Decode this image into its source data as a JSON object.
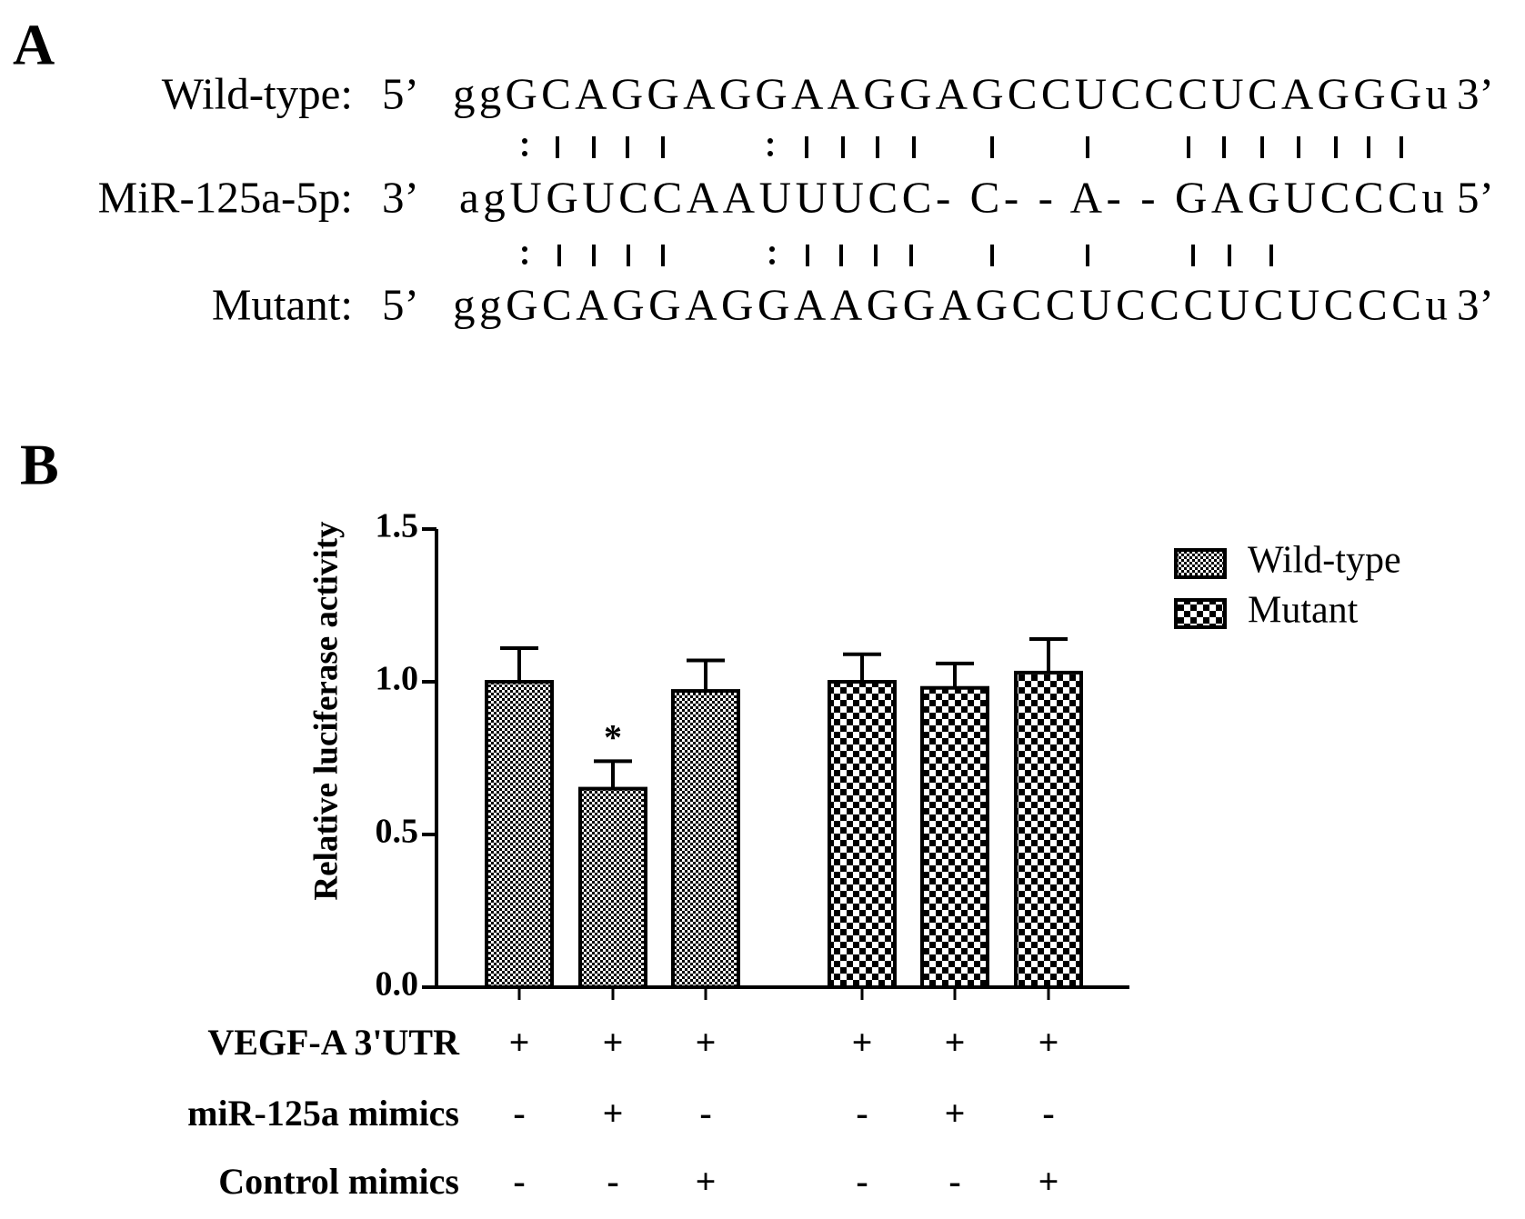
{
  "panel_a": {
    "label": "A",
    "rows": [
      {
        "name": "Wild-type:",
        "left_end": "5’",
        "sequence": "ggGCAGGAGGAAGGAGCCUCCCUCAGGGu",
        "right_end": "3’"
      },
      {
        "name": "MiR-125a-5p:",
        "left_end": "3’",
        "sequence": "agUGUCCAAUUUCC-  C- - A-  - GAGUCCCu",
        "right_end": "5’"
      },
      {
        "name": "Mutant:",
        "left_end": "5’",
        "sequence": "ggGCAGGAGGAAGGAGCCUCCCUCUCCCu",
        "right_end": "3’"
      }
    ]
  },
  "chart_data": {
    "type": "bar",
    "panel_label": "B",
    "y_label": "Relative luciferase activity",
    "ylim": [
      0,
      1.5
    ],
    "yticks": [
      {
        "value": 0,
        "label": "0.0"
      },
      0.5,
      {
        "value": 1,
        "label": "1.0"
      },
      1.5
    ],
    "series": [
      {
        "name": "Wild-type",
        "color": "#000000",
        "values": [
          1.0,
          0.65,
          0.97
        ],
        "errors": [
          0.11,
          0.09,
          0.1
        ]
      },
      {
        "name": "Mutant",
        "color": "#000000",
        "values": [
          1.0,
          0.98,
          1.03
        ],
        "errors": [
          0.09,
          0.08,
          0.11
        ]
      }
    ],
    "annotations": [
      {
        "text": "*",
        "series": 0,
        "index": 1
      }
    ],
    "conditions": [
      {
        "name": "VEGF-A 3'UTR",
        "marks": [
          "+",
          "+",
          "+",
          "+",
          "+",
          "+"
        ]
      },
      {
        "name": "miR-125a mimics",
        "marks": [
          "-",
          "+",
          "-",
          "-",
          "+",
          "-"
        ]
      },
      {
        "name": "Control mimics",
        "marks": [
          "-",
          "-",
          "+",
          "-",
          "-",
          "+"
        ]
      }
    ],
    "legend": "top-right"
  }
}
